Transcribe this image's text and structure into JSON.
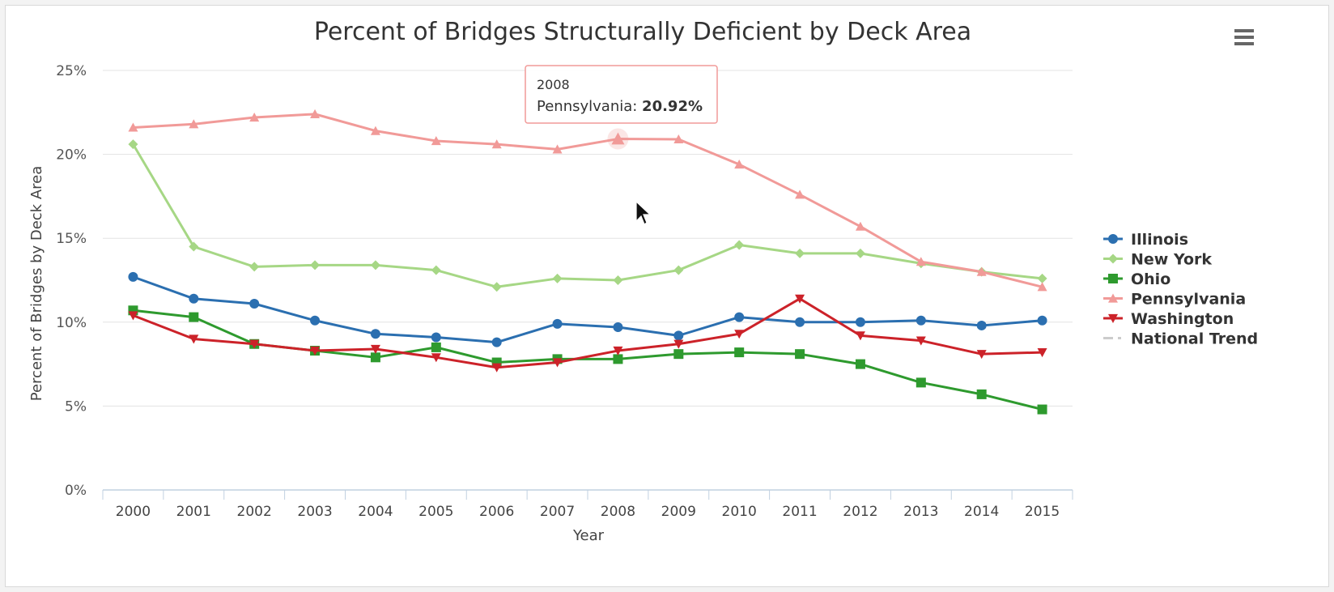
{
  "chart_data": {
    "type": "line",
    "title": "Percent of Bridges Structurally Deficient by Deck Area",
    "xlabel": "Year",
    "ylabel": "Percent of Bridges by Deck Area",
    "categories": [
      "2000",
      "2001",
      "2002",
      "2003",
      "2004",
      "2005",
      "2006",
      "2007",
      "2008",
      "2009",
      "2010",
      "2011",
      "2012",
      "2013",
      "2014",
      "2015"
    ],
    "ylim": [
      0,
      25
    ],
    "yticks": [
      "0%",
      "5%",
      "10%",
      "15%",
      "20%",
      "25%"
    ],
    "grid": "horizontal",
    "legend_position": "right",
    "series": [
      {
        "name": "Illinois",
        "color": "#2b6fb0",
        "marker": "circle",
        "values": [
          12.7,
          11.4,
          11.1,
          10.1,
          9.3,
          9.1,
          8.8,
          9.9,
          9.7,
          9.2,
          10.3,
          10.0,
          10.0,
          10.1,
          9.8,
          10.1
        ]
      },
      {
        "name": "New York",
        "color": "#a6d785",
        "marker": "diamond",
        "values": [
          20.6,
          14.5,
          13.3,
          13.4,
          13.4,
          13.1,
          12.1,
          12.6,
          12.5,
          13.1,
          14.6,
          14.1,
          14.1,
          13.5,
          13.0,
          12.6
        ]
      },
      {
        "name": "Ohio",
        "color": "#2e9a2e",
        "marker": "square",
        "values": [
          10.7,
          10.3,
          8.7,
          8.3,
          7.9,
          8.5,
          7.6,
          7.8,
          7.8,
          8.1,
          8.2,
          8.1,
          7.5,
          6.4,
          5.7,
          4.8
        ]
      },
      {
        "name": "Pennsylvania",
        "color": "#f19a98",
        "marker": "triangle",
        "values": [
          21.6,
          21.8,
          22.2,
          22.4,
          21.4,
          20.8,
          20.6,
          20.3,
          20.92,
          20.9,
          19.4,
          17.6,
          15.7,
          13.6,
          13.0,
          12.1
        ]
      },
      {
        "name": "Washington",
        "color": "#cc2229",
        "marker": "triangle-down",
        "values": [
          10.4,
          9.0,
          8.7,
          8.3,
          8.4,
          7.9,
          7.3,
          7.6,
          8.3,
          8.7,
          9.3,
          11.4,
          9.2,
          8.9,
          8.1,
          8.2
        ]
      }
    ],
    "hidden_series": [
      {
        "name": "National Trend",
        "color": "#cccccc",
        "marker": "dash-dot"
      }
    ],
    "tooltip": {
      "year": "2008",
      "series_label": "Pennsylvania: ",
      "value_text": "20.92%",
      "category_index": 8,
      "border_color": "#f19a98"
    }
  },
  "ui": {
    "menu_icon": "hamburger-icon",
    "cursor_icon": "mouse-pointer-icon"
  }
}
